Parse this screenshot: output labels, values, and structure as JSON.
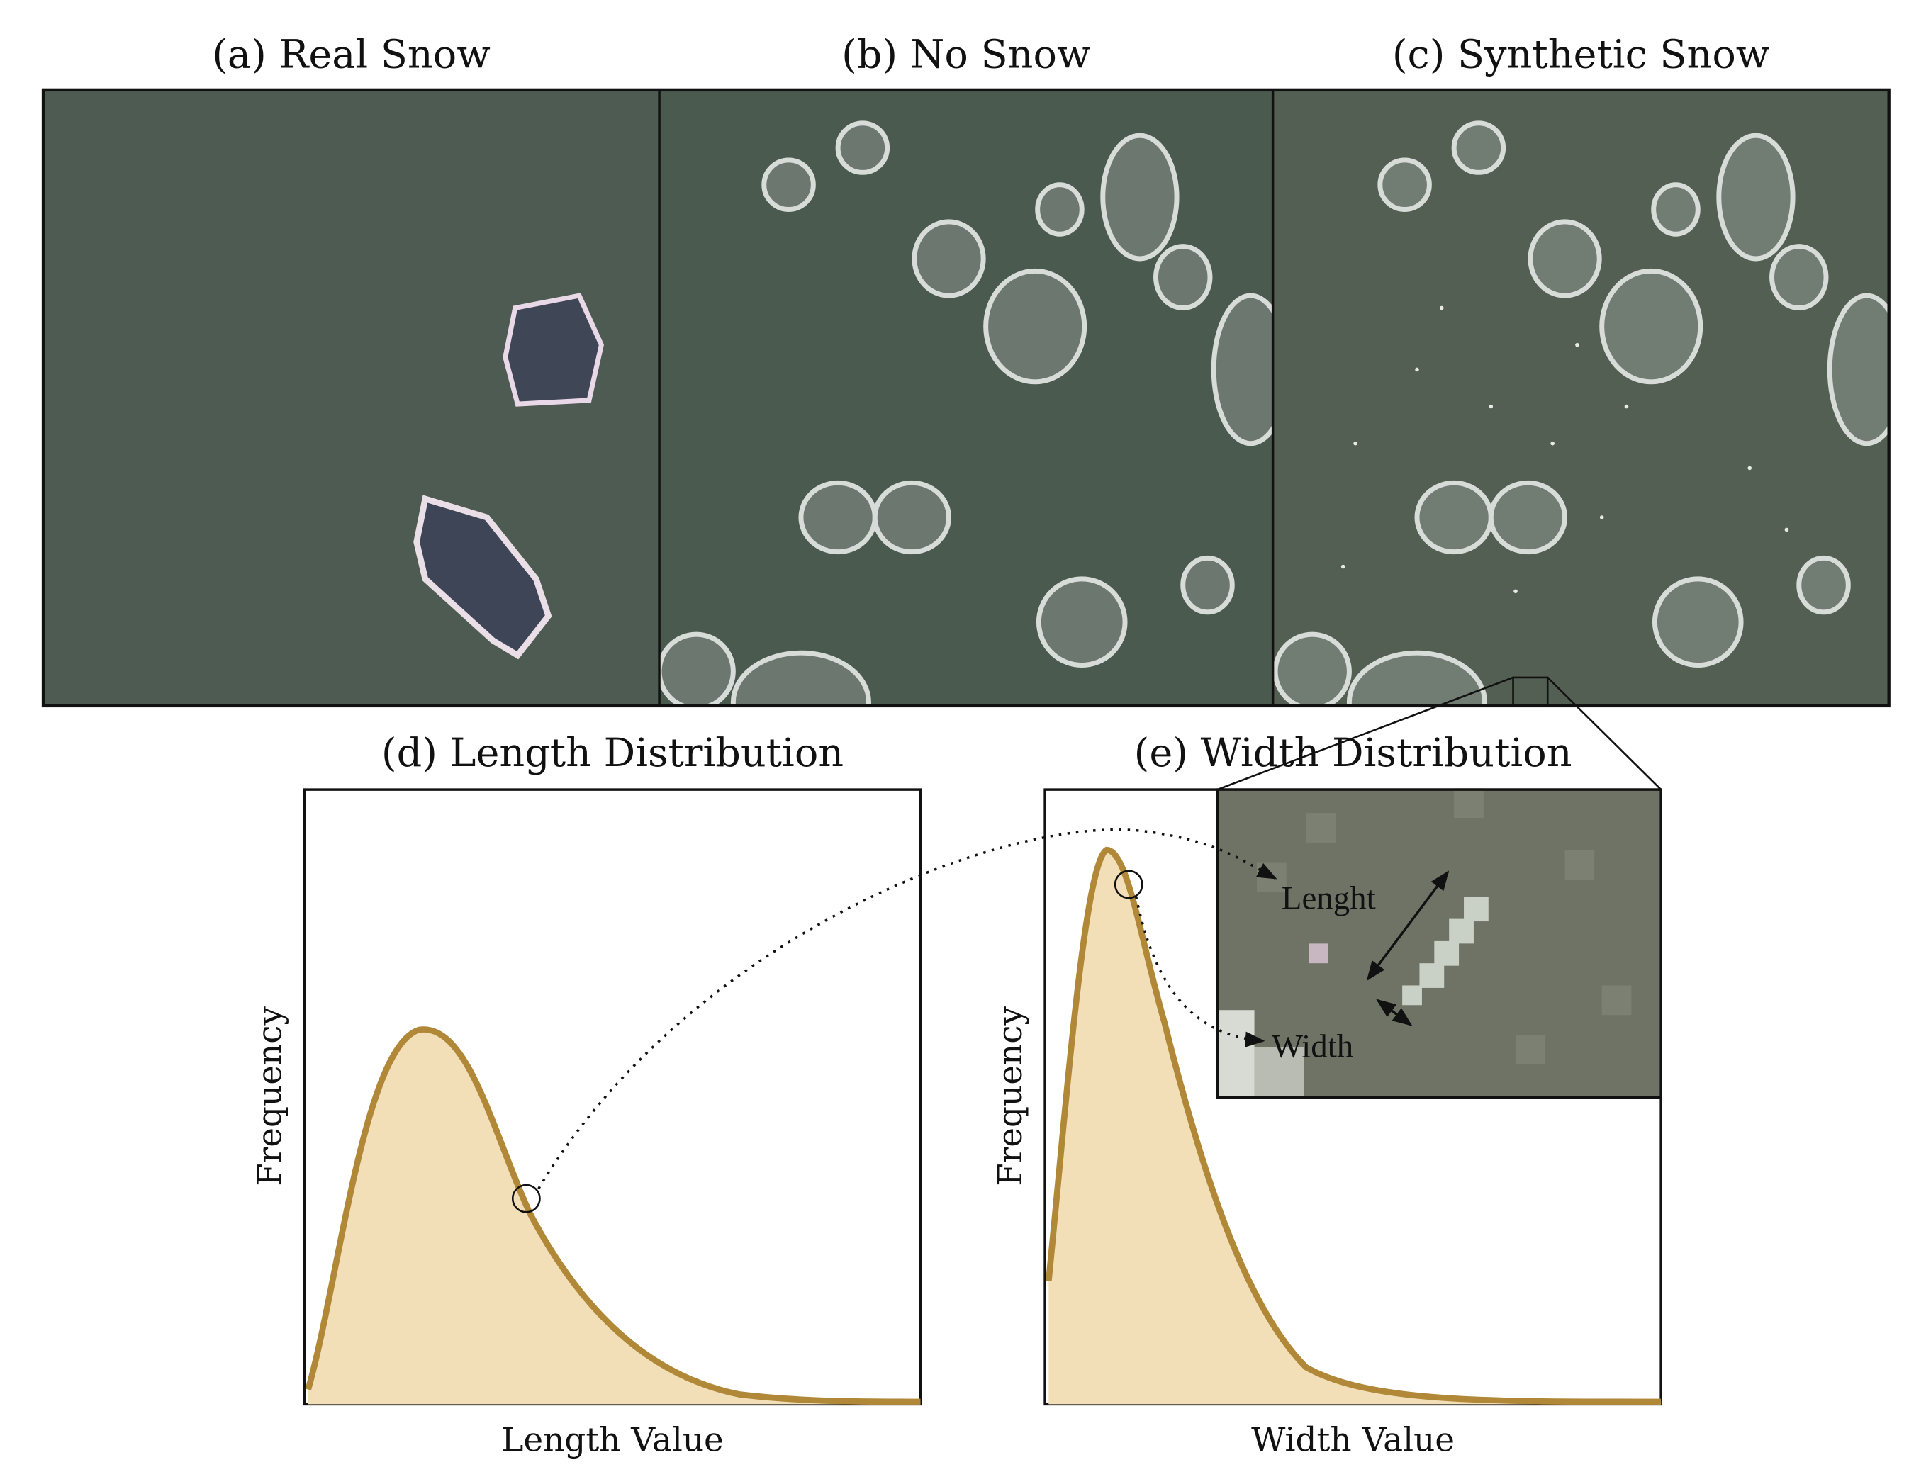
{
  "panels": [
    {
      "title": "(a) Real Snow"
    },
    {
      "title": "(b) No Snow"
    },
    {
      "title": "(c) Synthetic Snow"
    }
  ],
  "plots": [
    {
      "title": "(d) Length Distribution",
      "xlabel": "Length Value",
      "ylabel": "Frequency"
    },
    {
      "title": "(e) Width Distribution",
      "xlabel": "Width Value",
      "ylabel": "Frequency"
    }
  ],
  "inset": {
    "length_label": "Lenght",
    "width_label": "Width"
  }
}
